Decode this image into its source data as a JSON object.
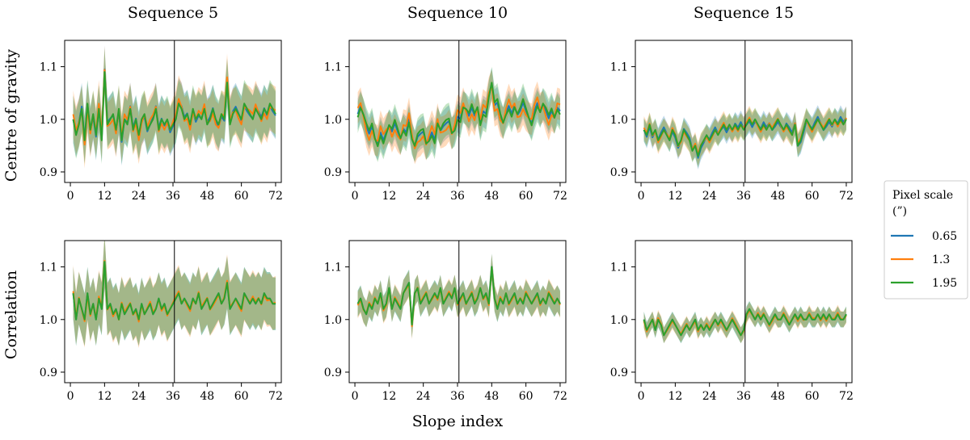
{
  "figure": {
    "col_titles": [
      "Sequence 5",
      "Sequence 10",
      "Sequence 15"
    ],
    "row_labels": [
      "Centre of gravity",
      "Correlation"
    ],
    "xlabel": "Slope index",
    "legend": {
      "title_line1": "Pixel scale",
      "title_line2": "(”)",
      "entries": [
        {
          "label": "0.65",
          "color": "#1f77b4"
        },
        {
          "label": "1.3",
          "color": "#ff7f0e"
        },
        {
          "label": "1.95",
          "color": "#2ca02c"
        }
      ]
    }
  },
  "chart_data": {
    "type": "line",
    "title": "",
    "xlabel": "Slope index",
    "x": [
      1,
      2,
      3,
      4,
      5,
      6,
      7,
      8,
      9,
      10,
      11,
      12,
      13,
      14,
      15,
      16,
      17,
      18,
      19,
      20,
      21,
      22,
      23,
      24,
      25,
      26,
      27,
      28,
      29,
      30,
      31,
      32,
      33,
      34,
      35,
      36,
      37,
      38,
      39,
      40,
      41,
      42,
      43,
      44,
      45,
      46,
      47,
      48,
      49,
      50,
      51,
      52,
      53,
      54,
      55,
      56,
      57,
      58,
      59,
      60,
      61,
      62,
      63,
      64,
      65,
      66,
      67,
      68,
      69,
      70,
      71,
      72
    ],
    "xlim": [
      -2,
      74
    ],
    "ylim": [
      0.88,
      1.15
    ],
    "xticks": [
      0,
      12,
      24,
      36,
      48,
      60,
      72
    ],
    "yticks": [
      0.9,
      1.0,
      1.1
    ],
    "ytick_labels": [
      "0.9",
      "1.0",
      "1.1"
    ],
    "vline_x": 36.5,
    "legend_position": "right",
    "series_names": [
      "0.65",
      "1.3",
      "1.95"
    ],
    "panels": [
      {
        "row": "Centre of gravity",
        "col": "Sequence 5",
        "band": 0.045,
        "base": [
          1.0,
          0.97,
          0.99,
          1.02,
          0.96,
          1.03,
          0.98,
          1.01,
          0.97,
          1.02,
          0.96,
          1.09,
          0.99,
          1.0,
          1.01,
          0.98,
          1.02,
          0.96,
          1.0,
          0.99,
          1.02,
          0.98,
          1.0,
          0.97,
          1.0,
          1.01,
          0.98,
          0.99,
          1.0,
          1.02,
          0.98,
          1.0,
          0.99,
          1.0,
          0.98,
          0.99,
          1.0,
          1.03,
          1.02,
          1.0,
          1.01,
          0.99,
          1.02,
          1.0,
          1.01,
          1.0,
          1.02,
          0.99,
          1.0,
          1.02,
          1.0,
          0.99,
          1.01,
          1.0,
          1.07,
          0.99,
          1.01,
          1.02,
          1.01,
          1.0,
          1.03,
          1.02,
          1.01,
          1.0,
          1.02,
          1.01,
          1.0,
          1.02,
          1.01,
          1.03,
          1.02,
          1.01
        ],
        "offsets": [
          0.005,
          0.01,
          0.0
        ]
      },
      {
        "row": "Centre of gravity",
        "col": "Sequence 10",
        "band": 0.03,
        "base": [
          1.01,
          1.02,
          1.0,
          0.98,
          0.97,
          0.99,
          0.97,
          0.96,
          0.98,
          0.96,
          0.97,
          0.98,
          0.97,
          0.99,
          0.98,
          0.97,
          0.99,
          0.98,
          1.0,
          0.96,
          0.94,
          0.96,
          0.97,
          0.98,
          0.96,
          0.97,
          0.98,
          0.96,
          0.99,
          0.97,
          0.98,
          0.99,
          1.0,
          0.98,
          0.99,
          1.01,
          1.0,
          1.02,
          1.01,
          1.0,
          1.02,
          1.01,
          1.03,
          1.0,
          1.02,
          1.01,
          1.04,
          1.06,
          1.02,
          1.03,
          1.01,
          1.0,
          1.02,
          1.03,
          1.01,
          1.02,
          1.0,
          1.01,
          1.03,
          1.02,
          1.01,
          1.0,
          1.02,
          1.03,
          1.01,
          1.02,
          1.01,
          1.0,
          1.02,
          1.01,
          1.03,
          1.02
        ],
        "offsets": [
          0.008,
          0.012,
          -0.012
        ]
      },
      {
        "row": "Centre of gravity",
        "col": "Sequence 15",
        "band": 0.022,
        "base": [
          0.98,
          0.97,
          0.99,
          0.97,
          0.98,
          0.96,
          0.97,
          0.98,
          0.97,
          0.96,
          0.98,
          0.97,
          0.95,
          0.96,
          0.98,
          0.97,
          0.96,
          0.94,
          0.95,
          0.93,
          0.95,
          0.96,
          0.97,
          0.96,
          0.97,
          0.98,
          0.97,
          0.98,
          0.99,
          0.98,
          0.99,
          0.98,
          0.99,
          0.98,
          0.99,
          0.98,
          0.99,
          1.0,
          0.99,
          1.0,
          0.99,
          0.98,
          0.99,
          0.98,
          0.99,
          0.98,
          0.99,
          1.0,
          0.99,
          0.98,
          0.99,
          0.98,
          0.97,
          0.99,
          0.95,
          0.96,
          0.98,
          1.0,
          0.99,
          0.98,
          0.99,
          1.0,
          0.99,
          0.98,
          0.99,
          1.0,
          0.99,
          1.0,
          0.99,
          1.0,
          0.99,
          1.0
        ],
        "offsets": [
          -0.005,
          0.004,
          0.0
        ]
      },
      {
        "row": "Correlation",
        "col": "Sequence 5",
        "band": 0.05,
        "base": [
          1.05,
          1.0,
          1.04,
          1.02,
          1.0,
          1.05,
          1.01,
          1.03,
          1.0,
          1.04,
          1.02,
          1.11,
          1.02,
          1.03,
          1.01,
          1.02,
          1.0,
          1.03,
          1.01,
          1.02,
          1.03,
          1.01,
          1.02,
          1.0,
          1.03,
          1.01,
          1.02,
          1.03,
          1.01,
          1.02,
          1.04,
          1.02,
          1.03,
          1.01,
          1.02,
          1.03,
          1.04,
          1.05,
          1.03,
          1.04,
          1.03,
          1.02,
          1.04,
          1.03,
          1.05,
          1.02,
          1.03,
          1.04,
          1.02,
          1.03,
          1.04,
          1.05,
          1.03,
          1.04,
          1.07,
          1.02,
          1.03,
          1.04,
          1.03,
          1.02,
          1.05,
          1.04,
          1.03,
          1.04,
          1.03,
          1.04,
          1.03,
          1.05,
          1.04,
          1.04,
          1.03,
          1.03
        ],
        "offsets": [
          0.0,
          0.004,
          0.0
        ]
      },
      {
        "row": "Correlation",
        "col": "Sequence 10",
        "band": 0.025,
        "base": [
          1.03,
          1.04,
          1.02,
          1.01,
          1.03,
          1.02,
          1.04,
          1.03,
          1.05,
          1.02,
          1.03,
          1.06,
          1.02,
          1.04,
          1.03,
          1.02,
          1.05,
          1.06,
          1.07,
          0.99,
          1.05,
          1.06,
          1.03,
          1.04,
          1.05,
          1.03,
          1.04,
          1.05,
          1.04,
          1.06,
          1.03,
          1.04,
          1.05,
          1.04,
          1.06,
          1.03,
          1.04,
          1.05,
          1.03,
          1.04,
          1.05,
          1.03,
          1.04,
          1.06,
          1.04,
          1.05,
          1.03,
          1.1,
          1.04,
          1.02,
          1.04,
          1.03,
          1.05,
          1.03,
          1.04,
          1.05,
          1.03,
          1.04,
          1.03,
          1.05,
          1.04,
          1.03,
          1.04,
          1.05,
          1.03,
          1.04,
          1.03,
          1.05,
          1.04,
          1.03,
          1.04,
          1.03
        ],
        "offsets": [
          0.0,
          -0.003,
          0.0
        ]
      },
      {
        "row": "Correlation",
        "col": "Sequence 15",
        "band": 0.015,
        "base": [
          1.0,
          0.98,
          0.99,
          1.0,
          0.98,
          1.0,
          0.99,
          0.97,
          0.98,
          0.99,
          1.0,
          0.99,
          0.98,
          0.97,
          0.98,
          0.99,
          0.98,
          0.99,
          1.0,
          0.98,
          0.99,
          0.98,
          0.99,
          0.98,
          0.99,
          1.0,
          0.99,
          1.0,
          0.99,
          0.98,
          0.99,
          1.0,
          0.99,
          0.98,
          0.97,
          0.98,
          1.01,
          1.02,
          1.01,
          1.0,
          1.01,
          1.0,
          1.01,
          1.0,
          0.99,
          1.0,
          1.01,
          1.0,
          1.0,
          1.01,
          1.0,
          0.99,
          1.0,
          1.01,
          1.0,
          1.01,
          1.0,
          1.0,
          1.01,
          1.0,
          1.0,
          1.01,
          1.0,
          1.01,
          1.0,
          1.01,
          1.0,
          1.0,
          1.01,
          1.0,
          1.0,
          1.01
        ],
        "offsets": [
          0.0,
          -0.003,
          0.0
        ]
      }
    ]
  }
}
